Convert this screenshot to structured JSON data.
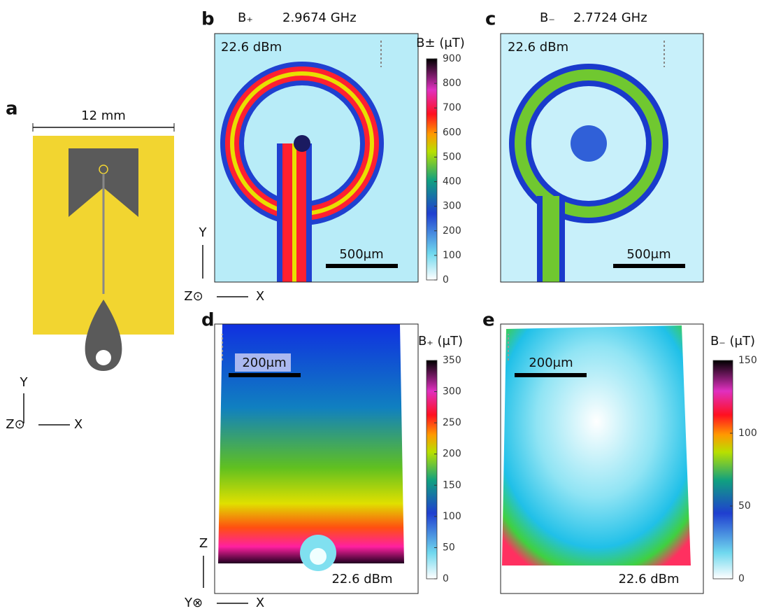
{
  "figure": {
    "panel_a": {
      "letter": "a",
      "scale": "12 mm",
      "axis_y": "Y",
      "axis_z": "Z⊙",
      "axis_x": "X"
    },
    "panel_b": {
      "letter": "b",
      "field": "B₊",
      "frequency": "2.9674 GHz",
      "power": "22.6 dBm",
      "scale_bar": "500μm",
      "axis_y": "Y",
      "axis_z": "Z⊙",
      "axis_x": "X"
    },
    "panel_c": {
      "letter": "c",
      "field": "B₋",
      "frequency": "2.7724 GHz",
      "power": "22.6 dBm",
      "scale_bar": "500μm"
    },
    "panel_d": {
      "letter": "d",
      "power": "22.6 dBm",
      "scale_bar": "200μm",
      "axis_z": "Z",
      "axis_y": "Y⊗",
      "axis_x": "X"
    },
    "panel_e": {
      "letter": "e",
      "power": "22.6 dBm",
      "scale_bar": "200μm"
    },
    "colorbars": [
      {
        "label": "B± (μT)",
        "ticks": [
          0,
          100,
          200,
          300,
          400,
          500,
          600,
          700,
          800,
          900
        ]
      },
      {
        "label": "B₊ (μT)",
        "ticks": [
          0,
          50,
          100,
          150,
          200,
          250,
          300,
          350
        ]
      },
      {
        "label": "B₋ (μT)",
        "ticks": [
          0,
          50,
          100,
          150
        ]
      }
    ]
  }
}
